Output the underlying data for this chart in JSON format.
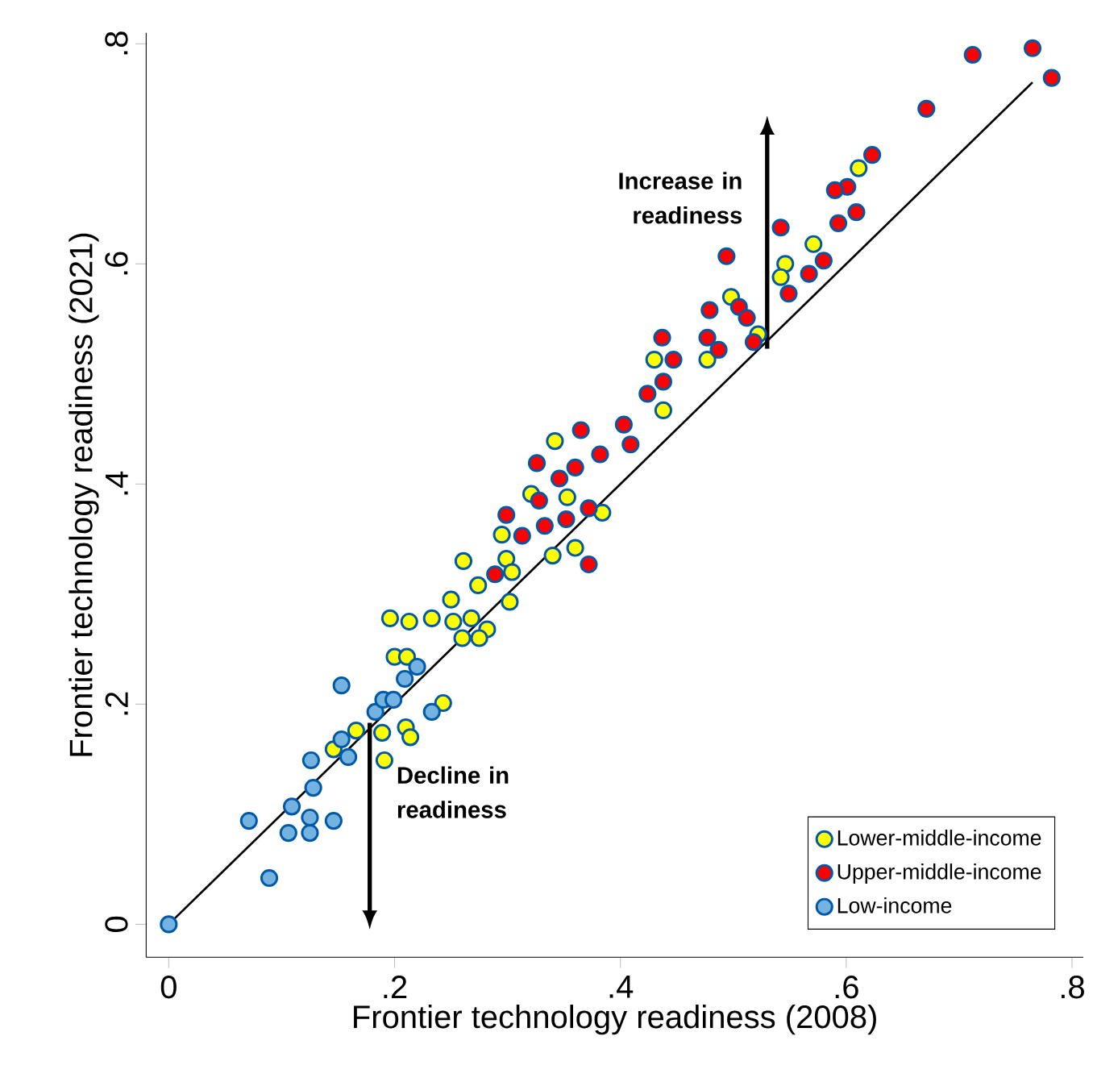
{
  "chart_data": {
    "type": "scatter",
    "xlabel": "Frontier technology readiness (2008)",
    "ylabel": "Frontier technology readiness (2021)",
    "xlim": [
      -0.02,
      0.81
    ],
    "ylim": [
      -0.03,
      0.81
    ],
    "xticks": [
      {
        "value": 0,
        "label": "0"
      },
      {
        "value": 0.2,
        "label": ".2"
      },
      {
        "value": 0.4,
        "label": ".4"
      },
      {
        "value": 0.6,
        "label": ".6"
      },
      {
        "value": 0.8,
        "label": ".8"
      }
    ],
    "yticks": [
      {
        "value": 0,
        "label": "0"
      },
      {
        "value": 0.2,
        "label": ".2"
      },
      {
        "value": 0.4,
        "label": ".4"
      },
      {
        "value": 0.6,
        "label": ".6"
      },
      {
        "value": 0.8,
        "label": ".8"
      }
    ],
    "legend": "bottom right",
    "grid": false,
    "annotations": [
      "Increase in readiness",
      "Decline in readiness"
    ],
    "series": [
      {
        "type": "line",
        "color": "#000000",
        "marker": "none",
        "x": [
          0,
          0.765
        ],
        "values": [
          0,
          0.765
        ]
      },
      {
        "name": "Lower-middle-income",
        "color": "#ffff00",
        "marker": "circle",
        "x": [
          0.196,
          0.213,
          0.233,
          0.252,
          0.268,
          0.282,
          0.275,
          0.26,
          0.2,
          0.211,
          0.243,
          0.189,
          0.21,
          0.214,
          0.166,
          0.146,
          0.191,
          0.25,
          0.274,
          0.261,
          0.302,
          0.342,
          0.321,
          0.353,
          0.384,
          0.295,
          0.299,
          0.304,
          0.34,
          0.36,
          0.43,
          0.438,
          0.477,
          0.611,
          0.571,
          0.546,
          0.542,
          0.498,
          0.522
        ],
        "values": [
          0.278,
          0.275,
          0.278,
          0.275,
          0.278,
          0.268,
          0.26,
          0.26,
          0.243,
          0.243,
          0.201,
          0.174,
          0.179,
          0.17,
          0.176,
          0.159,
          0.149,
          0.295,
          0.308,
          0.33,
          0.293,
          0.439,
          0.391,
          0.388,
          0.374,
          0.354,
          0.332,
          0.32,
          0.335,
          0.342,
          0.513,
          0.467,
          0.513,
          0.687,
          0.618,
          0.6,
          0.588,
          0.57,
          0.536
        ]
      },
      {
        "name": "Upper-middle-income",
        "color": "#ff0000",
        "marker": "circle",
        "x": [
          0.289,
          0.299,
          0.313,
          0.328,
          0.333,
          0.352,
          0.372,
          0.372,
          0.326,
          0.346,
          0.36,
          0.382,
          0.365,
          0.403,
          0.409,
          0.424,
          0.438,
          0.447,
          0.437,
          0.477,
          0.487,
          0.765,
          0.712,
          0.782,
          0.671,
          0.623,
          0.601,
          0.59,
          0.609,
          0.593,
          0.542,
          0.494,
          0.58,
          0.567,
          0.549,
          0.505,
          0.512,
          0.479,
          0.518
        ],
        "values": [
          0.318,
          0.372,
          0.353,
          0.385,
          0.362,
          0.368,
          0.378,
          0.327,
          0.419,
          0.405,
          0.415,
          0.427,
          0.449,
          0.454,
          0.436,
          0.482,
          0.493,
          0.513,
          0.533,
          0.533,
          0.522,
          0.796,
          0.79,
          0.769,
          0.741,
          0.699,
          0.67,
          0.667,
          0.647,
          0.637,
          0.633,
          0.607,
          0.603,
          0.591,
          0.573,
          0.561,
          0.551,
          0.558,
          0.529
        ]
      },
      {
        "name": "Low-income",
        "color": "#74b3e0",
        "marker": "circle",
        "x": [
          0,
          0.089,
          0.071,
          0.106,
          0.125,
          0.125,
          0.146,
          0.109,
          0.128,
          0.126,
          0.159,
          0.153,
          0.153,
          0.183,
          0.19,
          0.199,
          0.233,
          0.209,
          0.22
        ],
        "values": [
          0,
          0.042,
          0.094,
          0.083,
          0.083,
          0.097,
          0.094,
          0.107,
          0.124,
          0.149,
          0.152,
          0.168,
          0.217,
          0.193,
          0.204,
          0.204,
          0.193,
          0.223,
          0.234
        ]
      }
    ]
  }
}
